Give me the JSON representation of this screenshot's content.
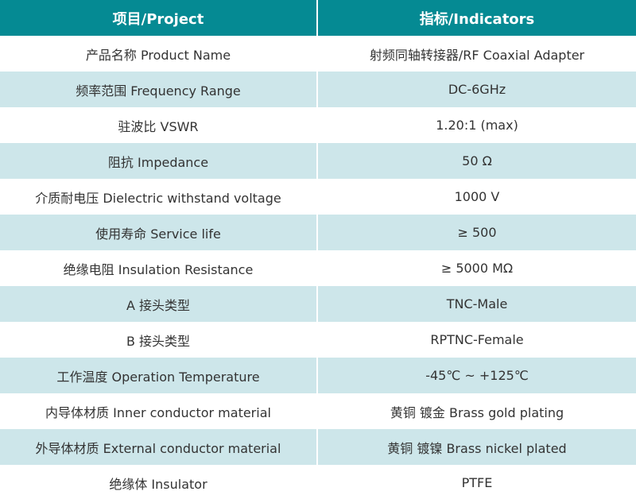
{
  "colors": {
    "header": "#058a93",
    "alt_row": "#cde6ea"
  },
  "header": {
    "col1": "项目/Project",
    "col2": "指标/Indicators"
  },
  "rows": [
    {
      "item": "产品名称 Product Name",
      "value": "射频同轴转接器/RF Coaxial Adapter"
    },
    {
      "item": "频率范围 Frequency Range",
      "value": "DC-6GHz"
    },
    {
      "item": "驻波比 VSWR",
      "value": "1.20:1 (max)"
    },
    {
      "item": "阻抗 Impedance",
      "value": "50 Ω"
    },
    {
      "item": "介质耐电压 Dielectric withstand voltage",
      "value": "1000 V"
    },
    {
      "item": "使用寿命 Service life",
      "value": "≥ 500"
    },
    {
      "item": "绝缘电阻 Insulation Resistance",
      "value": "≥ 5000 MΩ"
    },
    {
      "item": "A 接头类型",
      "value": "TNC-Male"
    },
    {
      "item": "B 接头类型",
      "value": "RPTNC-Female"
    },
    {
      "item": "工作温度 Operation Temperature",
      "value": "-45℃ ~ +125℃"
    },
    {
      "item": "内导体材质 Inner conductor material",
      "value": "黄铜 镀金 Brass gold plating"
    },
    {
      "item": "外导体材质 External conductor material",
      "value": "黄铜 镀镍 Brass nickel plated"
    },
    {
      "item": "绝缘体 Insulator",
      "value": "PTFE"
    }
  ]
}
